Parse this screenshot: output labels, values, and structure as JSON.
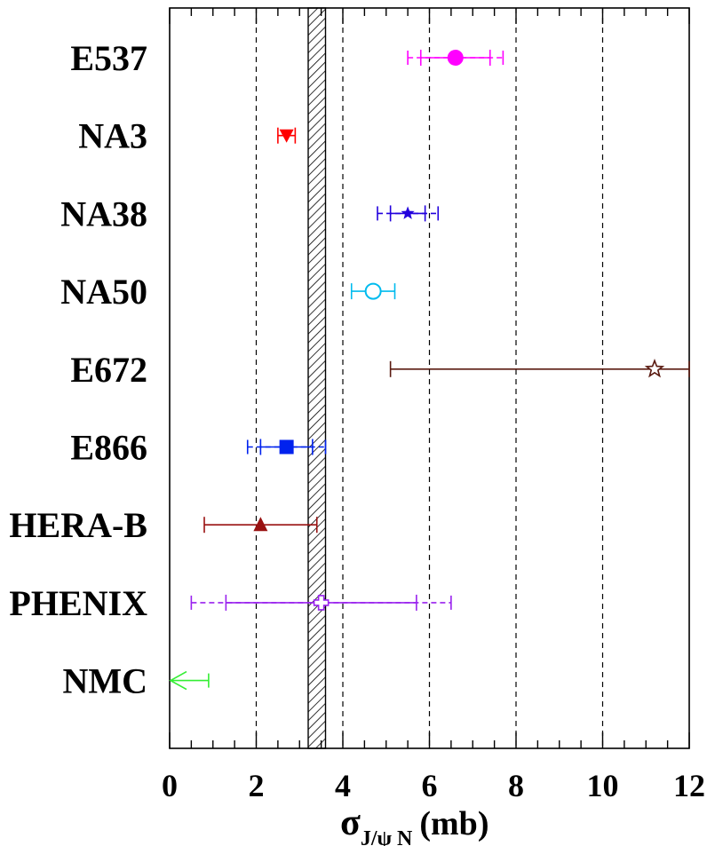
{
  "chart_data": {
    "type": "scatter",
    "orientation": "horizontal",
    "xlim": [
      0,
      12
    ],
    "x_ticks": [
      0,
      2,
      4,
      6,
      8,
      10,
      12
    ],
    "grid_x": [
      2,
      4,
      6,
      8,
      10
    ],
    "xlabel": {
      "main": "σ",
      "subscript": "J/ψ N",
      "unit": "(mb)"
    },
    "band": {
      "xmin": 3.2,
      "xmax": 3.6,
      "style": "hatched"
    },
    "experiments": [
      {
        "label": "E537",
        "value": 6.6,
        "stat": [
          5.8,
          7.4
        ],
        "sys": [
          5.5,
          7.7
        ],
        "marker": "filled-circle",
        "color": "#ff00ff"
      },
      {
        "label": "NA3",
        "value": 2.7,
        "stat": [
          2.5,
          2.9
        ],
        "sys": null,
        "marker": "filled-down-triangle",
        "color": "#ff0000"
      },
      {
        "label": "NA38",
        "value": 5.5,
        "stat": [
          5.1,
          5.9
        ],
        "sys": [
          4.8,
          6.2
        ],
        "marker": "filled-star",
        "color": "#2200dd"
      },
      {
        "label": "NA50",
        "value": 4.7,
        "stat": [
          4.2,
          5.2
        ],
        "sys": null,
        "marker": "open-circle",
        "color": "#00bbee"
      },
      {
        "label": "E672",
        "value": 11.2,
        "stat": [
          5.1,
          12.0
        ],
        "sys": null,
        "marker": "open-star",
        "color": "#5a1a10"
      },
      {
        "label": "E866",
        "value": 2.7,
        "stat": [
          2.1,
          3.3
        ],
        "sys": [
          1.8,
          3.6
        ],
        "marker": "filled-square",
        "color": "#0022ee"
      },
      {
        "label": "HERA-B",
        "value": 2.1,
        "stat": [
          0.8,
          3.4
        ],
        "sys": null,
        "marker": "filled-up-triangle",
        "color": "#991111"
      },
      {
        "label": "PHENIX",
        "value": 3.5,
        "stat": [
          1.3,
          5.7
        ],
        "sys": [
          0.5,
          6.5
        ],
        "marker": "open-cross",
        "color": "#9922ee"
      },
      {
        "label": "NMC",
        "value": null,
        "upper_limit": 0.9,
        "stat": null,
        "sys": null,
        "marker": "left-arrow",
        "color": "#33ee33"
      }
    ]
  }
}
